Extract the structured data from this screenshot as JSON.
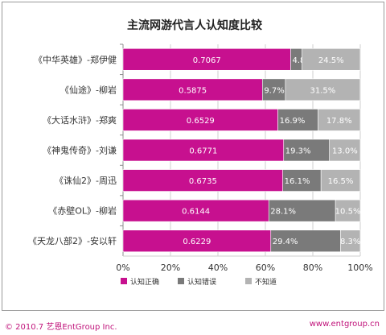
{
  "header": {
    "title": "主流网游代言人认知度比较"
  },
  "footer": {
    "copyright": "© 2010.7  艺恩EntGroup Inc.",
    "website": "www.entgroup.cn"
  },
  "colors": {
    "correct": "#c7108f",
    "wrong": "#7a7a7a",
    "unknown": "#b3b3b3",
    "grid": "#cfcfcf",
    "axis": "#8c8c8c",
    "footer": "#c0127a"
  },
  "chart_data": {
    "type": "bar",
    "orientation": "horizontal",
    "stacked": true,
    "title": "主流网游代言人认知度比较",
    "categories": [
      "《中华英雄》-郑伊健",
      "《仙途》-柳岩",
      "《大话水浒》-郑爽",
      "《神鬼传奇》-刘谦",
      "《诛仙2》-周迅",
      "《赤壁OL》-柳岩",
      "《天龙八部2》-安以轩"
    ],
    "series": [
      {
        "name": "认知正确",
        "values": [
          0.7067,
          0.5875,
          0.6529,
          0.6771,
          0.6735,
          0.6144,
          0.6229
        ],
        "labels": [
          "0.7067",
          "0.5875",
          "0.6529",
          "0.6771",
          "0.6735",
          "0.6144",
          "0.6229"
        ]
      },
      {
        "name": "认知错误",
        "values": [
          0.048,
          0.097,
          0.169,
          0.193,
          0.161,
          0.281,
          0.294
        ],
        "labels": [
          "4.8%",
          "9.7%",
          "16.9%",
          "19.3%",
          "16.1%",
          "28.1%",
          "29.4%"
        ]
      },
      {
        "name": "不知道",
        "values": [
          0.245,
          0.315,
          0.178,
          0.13,
          0.165,
          0.105,
          0.083
        ],
        "labels": [
          "24.5%",
          "31.5%",
          "17.8%",
          "13.0%",
          "16.5%",
          "10.5%",
          "8.3%"
        ]
      }
    ],
    "x_ticks": [
      "0%",
      "20%",
      "40%",
      "60%",
      "80%",
      "100%"
    ],
    "xlim": [
      0,
      1
    ],
    "grid": true,
    "legend_position": "bottom"
  }
}
